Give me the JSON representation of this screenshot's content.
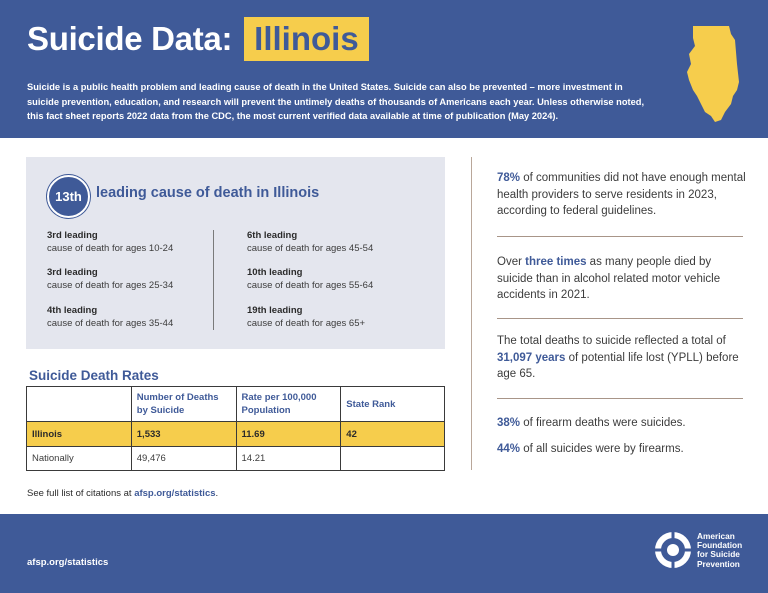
{
  "header": {
    "title": "Suicide Data:",
    "state": "Illinois",
    "intro": "Suicide is a public health problem and leading cause of death in the United States. Suicide can also be prevented – more investment in suicide prevention, education, and research will prevent the untimely deaths of thousands of Americans each year. Unless otherwise noted, this fact sheet reports 2022 data from the CDC, the most current verified data available at time of publication (May 2024)."
  },
  "ranking": {
    "rank": "13th",
    "text": "leading cause of death in Illinois",
    "left": [
      {
        "label": "3rd leading",
        "sub": "cause of death for ages 10-24"
      },
      {
        "label": "3rd leading",
        "sub": "cause of death for ages 25-34"
      },
      {
        "label": "4th leading",
        "sub": "cause of death for ages 35-44"
      }
    ],
    "right": [
      {
        "label": "6th leading",
        "sub": "cause of death for ages 45-54"
      },
      {
        "label": "10th leading",
        "sub": "cause of death for ages 55-64"
      },
      {
        "label": "19th leading",
        "sub": "cause of death for ages 65+"
      }
    ]
  },
  "rates": {
    "title": "Suicide Death Rates",
    "headers": [
      "",
      "Number of Deaths by Suicide",
      "Rate per 100,000 Population",
      "State Rank"
    ],
    "rows": [
      [
        "Illinois",
        "1,533",
        "11.69",
        "42"
      ],
      [
        "Nationally",
        "49,476",
        "14.21",
        ""
      ]
    ]
  },
  "citation": {
    "prefix": "See full list of citations at ",
    "link": "afsp.org/statistics",
    "suffix": "."
  },
  "stats": [
    {
      "pre": "",
      "bold": "78%",
      "post": " of communities did not have enough mental health providers to serve residents in 2023, according to federal guidelines."
    },
    {
      "pre": "Over ",
      "bold": "three times",
      "post": " as many people died by suicide than in alcohol related motor vehicle accidents in 2021."
    },
    {
      "pre": "The total deaths to suicide reflected a total of ",
      "bold": "31,097 years",
      "post": " of potential life lost (YPLL) before age 65."
    },
    {
      "pre": "",
      "bold": "38%",
      "post": " of firearm deaths were suicides."
    },
    {
      "pre": "",
      "bold": "44%",
      "post": " of all suicides were by firearms."
    }
  ],
  "footer": {
    "link": "afsp.org/statistics",
    "org_lines": [
      "American",
      "Foundation",
      "for Suicide",
      "Prevention"
    ]
  },
  "colors": {
    "brand_blue": "#3f5a98",
    "highlight_yellow": "#f6cd4c",
    "panel_gray": "#e4e6ee"
  },
  "icons": {
    "state": "illinois-state-map-icon",
    "logo": "afsp-lifebuoy-logo-icon"
  }
}
